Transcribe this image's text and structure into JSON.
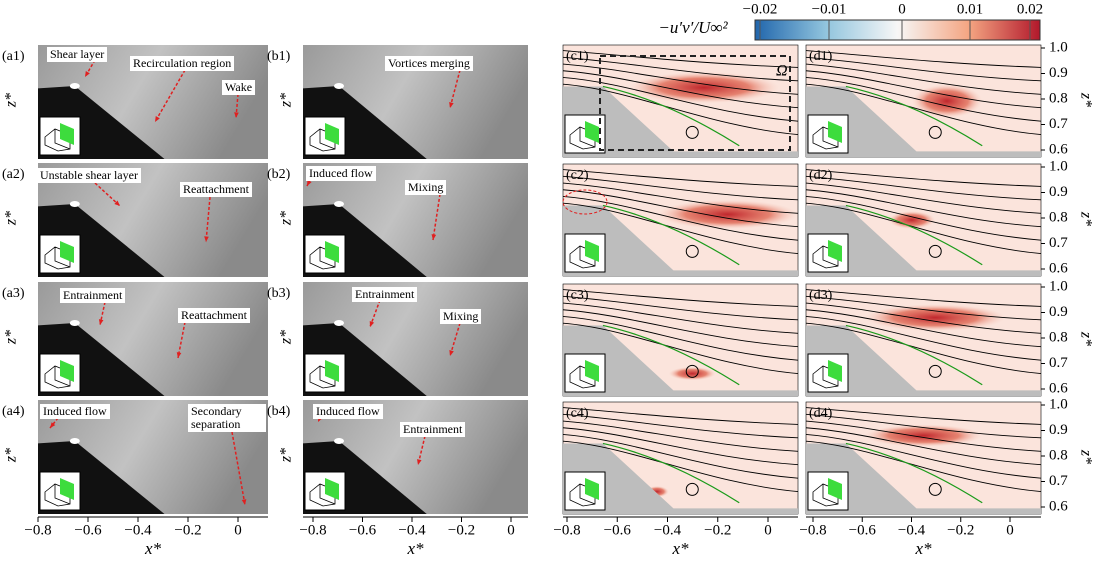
{
  "colorbar": {
    "label": "−u′v′/U∞²",
    "ticks": [
      "−0.02",
      "−0.01",
      "0",
      "0.01",
      "0.02"
    ]
  },
  "panels": {
    "a": [
      {
        "label": "(a1)",
        "notes": [
          "Shear layer",
          "Recirculation region",
          "Wake"
        ]
      },
      {
        "label": "(a2)",
        "notes": [
          "Unstable shear layer",
          "Reattachment"
        ]
      },
      {
        "label": "(a3)",
        "notes": [
          "Entrainment",
          "Reattachment"
        ]
      },
      {
        "label": "(a4)",
        "notes": [
          "Induced flow",
          "Secondary separation"
        ]
      }
    ],
    "b": [
      {
        "label": "(b1)",
        "notes": [
          "Vortices merging"
        ]
      },
      {
        "label": "(b2)",
        "notes": [
          "Induced flow",
          "Mixing"
        ]
      },
      {
        "label": "(b3)",
        "notes": [
          "Entrainment",
          "Mixing"
        ]
      },
      {
        "label": "(b4)",
        "notes": [
          "Induced flow",
          "Entrainment"
        ]
      }
    ],
    "c": [
      {
        "label": "(c1)",
        "notes": [
          "Ω"
        ]
      },
      {
        "label": "(c2)",
        "notes": []
      },
      {
        "label": "(c3)",
        "notes": []
      },
      {
        "label": "(c4)",
        "notes": []
      }
    ],
    "d": [
      {
        "label": "(d1)",
        "notes": []
      },
      {
        "label": "(d2)",
        "notes": []
      },
      {
        "label": "(d3)",
        "notes": []
      },
      {
        "label": "(d4)",
        "notes": []
      }
    ]
  },
  "x_axis": {
    "label": "x*",
    "ticks": [
      "−0.8",
      "−0.6",
      "−0.4",
      "−0.2",
      "0"
    ]
  },
  "z_axis": {
    "label": "z*",
    "ticks": [
      "1.0",
      "0.9",
      "0.8",
      "0.7",
      "0.6"
    ]
  }
}
